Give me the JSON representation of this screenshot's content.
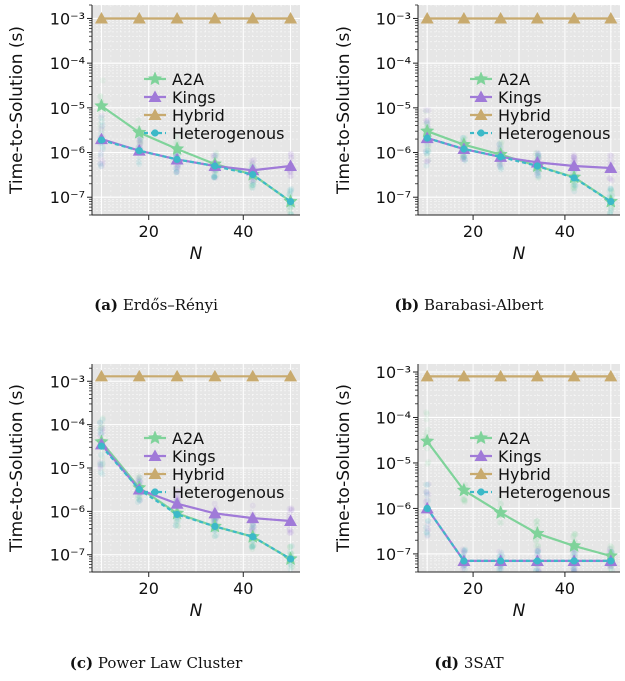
{
  "colors": {
    "A2A": "#7fd39a",
    "Kings": "#a07ad8",
    "Hybrid": "#c8aa6e",
    "Heterogenous": "#3cb9c8",
    "panel_bg": "#e6e6e6"
  },
  "captions": [
    {
      "tag": "(a)",
      "text": "Erdős–Rényi"
    },
    {
      "tag": "(b)",
      "text": "Barabasi-Albert"
    },
    {
      "tag": "(c)",
      "text": "Power Law Cluster"
    },
    {
      "tag": "(d)",
      "text": "3SAT"
    }
  ],
  "chart_data": [
    {
      "type": "line",
      "panel": "(a) Erdős–Rényi",
      "xlabel": "N",
      "ylabel": "Time-to-Solution (s)",
      "yscale": "log",
      "ylim": [
        4e-08,
        0.002
      ],
      "xlim": [
        8,
        52
      ],
      "xticks": [
        20,
        40
      ],
      "ytick_labels": [
        "10^-7",
        "10^-6",
        "10^-5",
        "10^-4",
        "10^-3"
      ],
      "legend": "center-right",
      "grid": true,
      "x": [
        10,
        18,
        26,
        34,
        42,
        50
      ],
      "series": [
        {
          "name": "A2A",
          "marker": "star",
          "values": [
            1.1e-05,
            2.8e-06,
            1.2e-06,
            5.5e-07,
            3.2e-07,
            8e-08
          ]
        },
        {
          "name": "Kings",
          "marker": "triangle",
          "values": [
            2e-06,
            1.1e-06,
            7e-07,
            5e-07,
            4e-07,
            5e-07
          ]
        },
        {
          "name": "Hybrid",
          "marker": "triangle",
          "values": [
            0.001,
            0.001,
            0.001,
            0.001,
            0.001,
            0.001
          ]
        },
        {
          "name": "Heterogenous",
          "marker": "circle",
          "style": "dashed",
          "values": [
            1.9e-06,
            1.1e-06,
            7e-07,
            5e-07,
            3.2e-07,
            8e-08
          ]
        }
      ]
    },
    {
      "type": "line",
      "panel": "(b) Barabasi-Albert",
      "xlabel": "N",
      "ylabel": "Time-to-Solution (s)",
      "yscale": "log",
      "ylim": [
        4e-08,
        0.002
      ],
      "xlim": [
        8,
        52
      ],
      "xticks": [
        20,
        40
      ],
      "ytick_labels": [
        "10^-7",
        "10^-6",
        "10^-5",
        "10^-4",
        "10^-3"
      ],
      "legend": "center-right",
      "grid": true,
      "x": [
        10,
        18,
        26,
        34,
        42,
        50
      ],
      "series": [
        {
          "name": "A2A",
          "marker": "star",
          "values": [
            3e-06,
            1.5e-06,
            9e-07,
            5e-07,
            2.8e-07,
            8e-08
          ]
        },
        {
          "name": "Kings",
          "marker": "triangle",
          "values": [
            2.1e-06,
            1.2e-06,
            8e-07,
            6e-07,
            5e-07,
            4.5e-07
          ]
        },
        {
          "name": "Hybrid",
          "marker": "triangle",
          "values": [
            0.001,
            0.001,
            0.001,
            0.001,
            0.001,
            0.001
          ]
        },
        {
          "name": "Heterogenous",
          "marker": "circle",
          "style": "dashed",
          "values": [
            2.1e-06,
            1.2e-06,
            8e-07,
            5e-07,
            2.7e-07,
            8e-08
          ]
        }
      ]
    },
    {
      "type": "line",
      "panel": "(c) Power Law Cluster",
      "xlabel": "N",
      "ylabel": "Time-to-Solution (s)",
      "yscale": "log",
      "ylim": [
        4e-08,
        0.0025
      ],
      "xlim": [
        8,
        52
      ],
      "xticks": [
        20,
        40
      ],
      "ytick_labels": [
        "10^-7",
        "10^-6",
        "10^-5",
        "10^-4",
        "10^-3"
      ],
      "legend": "center-right",
      "grid": true,
      "x": [
        10,
        18,
        26,
        34,
        42,
        50
      ],
      "series": [
        {
          "name": "A2A",
          "marker": "star",
          "values": [
            4e-05,
            3.5e-06,
            9e-07,
            4.5e-07,
            2.6e-07,
            8e-08
          ]
        },
        {
          "name": "Kings",
          "marker": "triangle",
          "values": [
            3.5e-05,
            3.2e-06,
            1.5e-06,
            9e-07,
            7e-07,
            6e-07
          ]
        },
        {
          "name": "Hybrid",
          "marker": "triangle",
          "values": [
            0.0013,
            0.0013,
            0.0013,
            0.0013,
            0.0013,
            0.0013
          ]
        },
        {
          "name": "Heterogenous",
          "marker": "circle",
          "style": "dashed",
          "values": [
            3.2e-05,
            3.2e-06,
            8.5e-07,
            4.5e-07,
            2.6e-07,
            8e-08
          ]
        }
      ]
    },
    {
      "type": "line",
      "panel": "(d) 3SAT",
      "xlabel": "N",
      "ylabel": "Time-to-Solution (s)",
      "yscale": "log",
      "ylim": [
        4e-08,
        0.0015
      ],
      "xlim": [
        8,
        52
      ],
      "xticks": [
        20,
        40
      ],
      "ytick_labels": [
        "10^-7",
        "10^-6",
        "10^-5",
        "10^-4",
        "10^-3"
      ],
      "legend": "center-right",
      "grid": true,
      "x": [
        10,
        18,
        26,
        34,
        42,
        50
      ],
      "series": [
        {
          "name": "A2A",
          "marker": "star",
          "values": [
            3e-05,
            2.5e-06,
            8e-07,
            2.8e-07,
            1.5e-07,
            9e-08
          ]
        },
        {
          "name": "Kings",
          "marker": "triangle",
          "values": [
            1e-06,
            7e-08,
            7e-08,
            7e-08,
            7e-08,
            7e-08
          ]
        },
        {
          "name": "Hybrid",
          "marker": "triangle",
          "values": [
            0.0008,
            0.0008,
            0.0008,
            0.0008,
            0.0008,
            0.0008
          ]
        },
        {
          "name": "Heterogenous",
          "marker": "circle",
          "style": "dashed",
          "values": [
            1e-06,
            7e-08,
            7e-08,
            7e-08,
            7e-08,
            7e-08
          ]
        }
      ]
    }
  ]
}
